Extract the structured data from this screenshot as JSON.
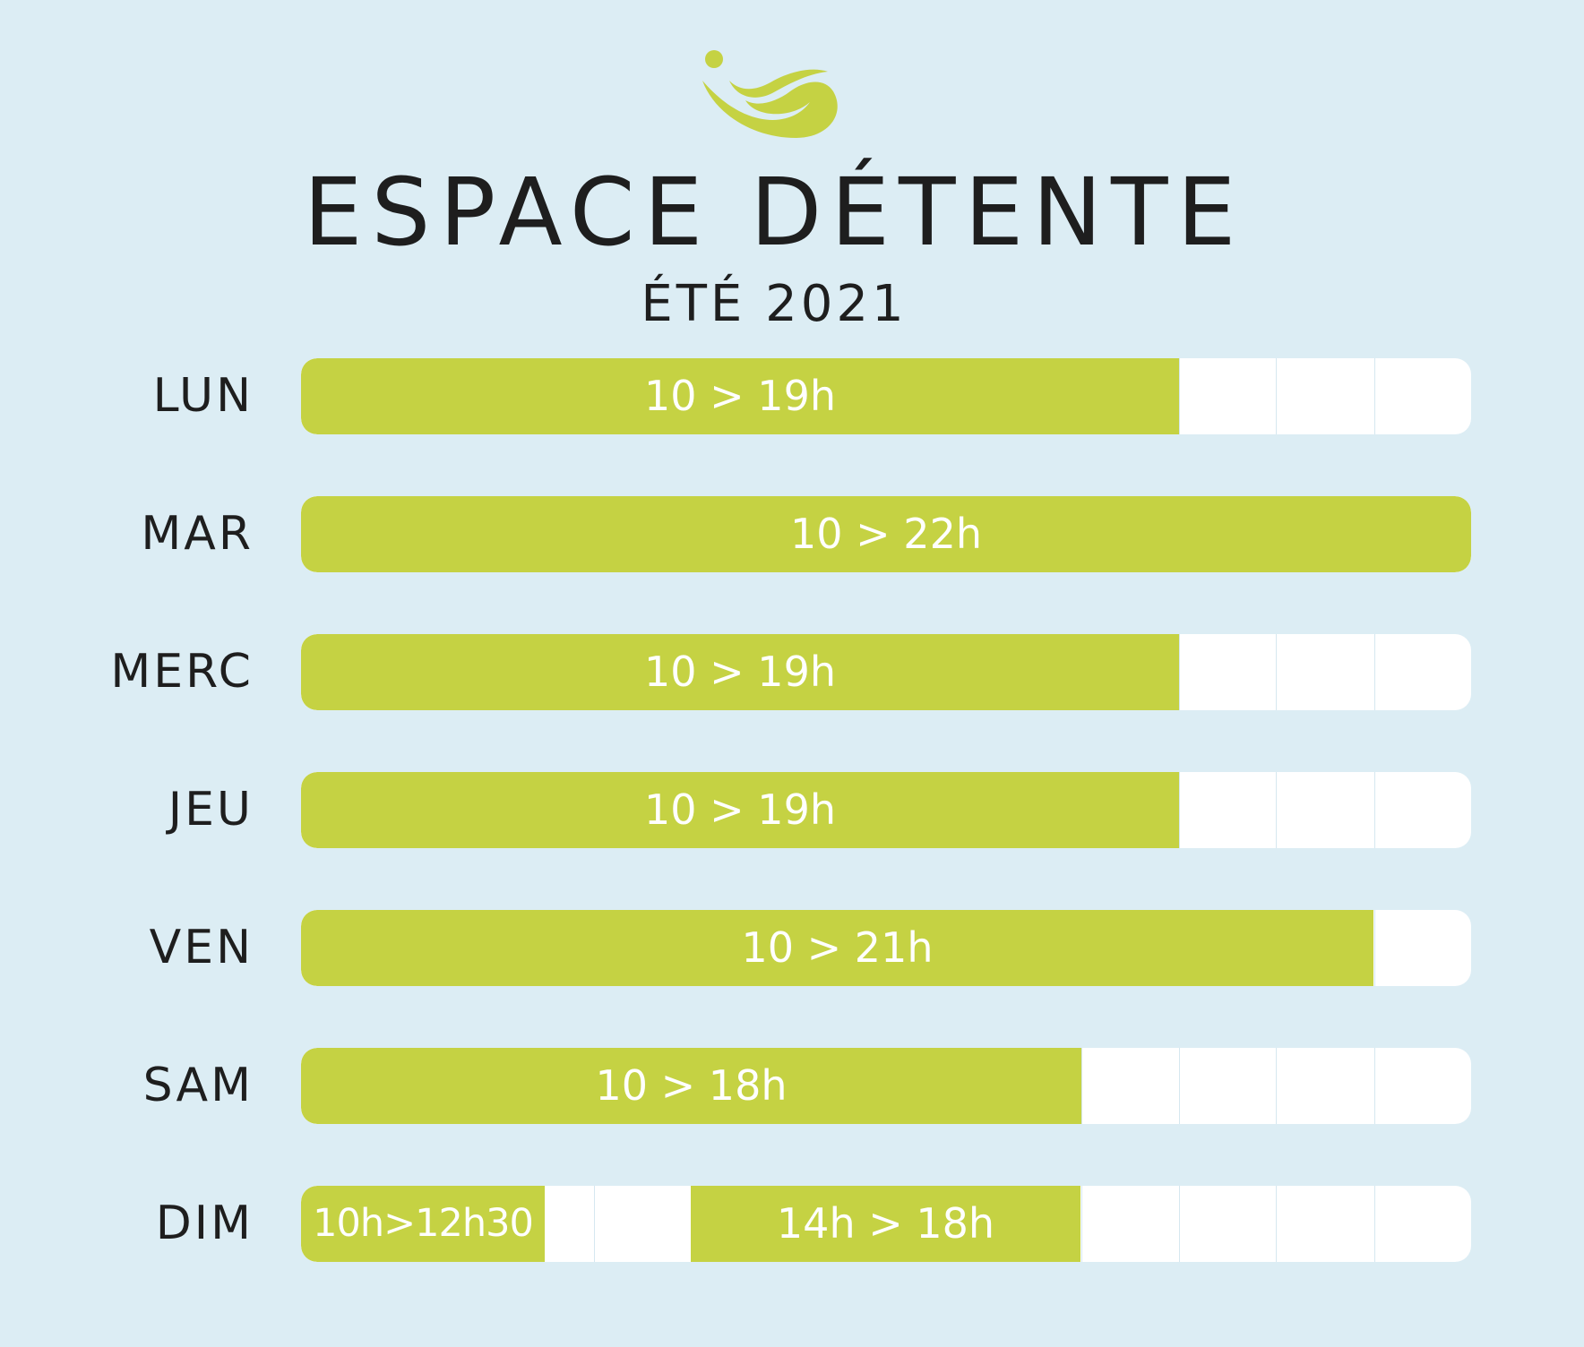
{
  "title": "ESPACE DÉTENTE",
  "subtitle": "ÉTÉ 2021",
  "colors": {
    "background": "#dcedf4",
    "open": "#c5d243",
    "closed": "#ffffff",
    "text": "#1e1e1e"
  },
  "scale": {
    "start_hour": 10,
    "end_hour": 22
  },
  "days": [
    {
      "label": "LUN",
      "slots": [
        {
          "text": "10 > 19h",
          "start": 10,
          "end": 19
        }
      ]
    },
    {
      "label": "MAR",
      "slots": [
        {
          "text": "10 > 22h",
          "start": 10,
          "end": 22
        }
      ]
    },
    {
      "label": "MERC",
      "slots": [
        {
          "text": "10 > 19h",
          "start": 10,
          "end": 19
        }
      ]
    },
    {
      "label": "JEU",
      "slots": [
        {
          "text": "10 > 19h",
          "start": 10,
          "end": 19
        }
      ]
    },
    {
      "label": "VEN",
      "slots": [
        {
          "text": "10 > 21h",
          "start": 10,
          "end": 21
        }
      ]
    },
    {
      "label": "SAM",
      "slots": [
        {
          "text": "10 > 18h",
          "start": 10,
          "end": 18
        }
      ]
    },
    {
      "label": "DIM",
      "slots": [
        {
          "text": "10h>12h30",
          "start": 10,
          "end": 12.5
        },
        {
          "text": "14h > 18h",
          "start": 14,
          "end": 18
        }
      ]
    }
  ]
}
